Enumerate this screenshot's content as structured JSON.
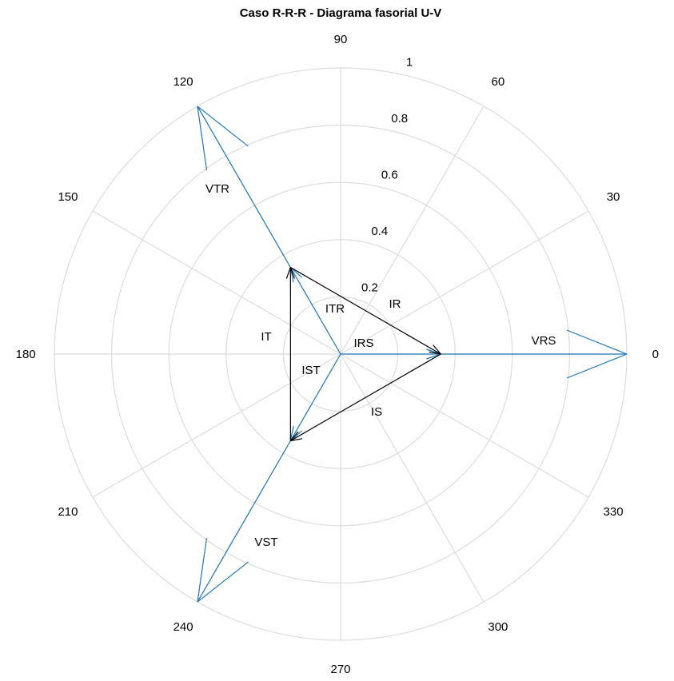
{
  "chart_data": {
    "type": "polar-phasor",
    "title": "Caso R-R-R - Diagrama fasorial U-V",
    "theta_ticks": [
      "0",
      "30",
      "60",
      "90",
      "120",
      "150",
      "180",
      "210",
      "240",
      "270",
      "300",
      "330"
    ],
    "r_ticks": [
      "0.2",
      "0.4",
      "0.6",
      "0.8",
      "1"
    ],
    "rlim": [
      0,
      1
    ],
    "grid": true,
    "colors": {
      "voltage": "#1f77b4",
      "current": "#000000",
      "grid": "#dcdcdc"
    },
    "voltage_phasors": [
      {
        "name": "VRS",
        "from": [
          0,
          0
        ],
        "to_deg": 0,
        "to_r": 1.0,
        "label": "VRS"
      },
      {
        "name": "VTR",
        "from": [
          0,
          0
        ],
        "to_deg": 120,
        "to_r": 1.0,
        "label": "VTR"
      },
      {
        "name": "VST",
        "from": [
          0,
          0
        ],
        "to_deg": 240,
        "to_r": 1.0,
        "label": "VST"
      }
    ],
    "current_components": [
      {
        "name": "IRS",
        "deg": 0,
        "r": 0.35,
        "label": "IRS"
      },
      {
        "name": "ITR",
        "deg": 120,
        "r": 0.35,
        "label": "ITR"
      },
      {
        "name": "IST",
        "deg": 240,
        "r": 0.35,
        "label": "IST"
      }
    ],
    "line_currents": [
      {
        "name": "IR",
        "from": "ITR",
        "to": "IRS",
        "label": "IR"
      },
      {
        "name": "IS",
        "from": "IRS",
        "to": "IST",
        "label": "IS"
      },
      {
        "name": "IT",
        "from": "IST",
        "to": "ITR",
        "label": "IT"
      }
    ]
  }
}
